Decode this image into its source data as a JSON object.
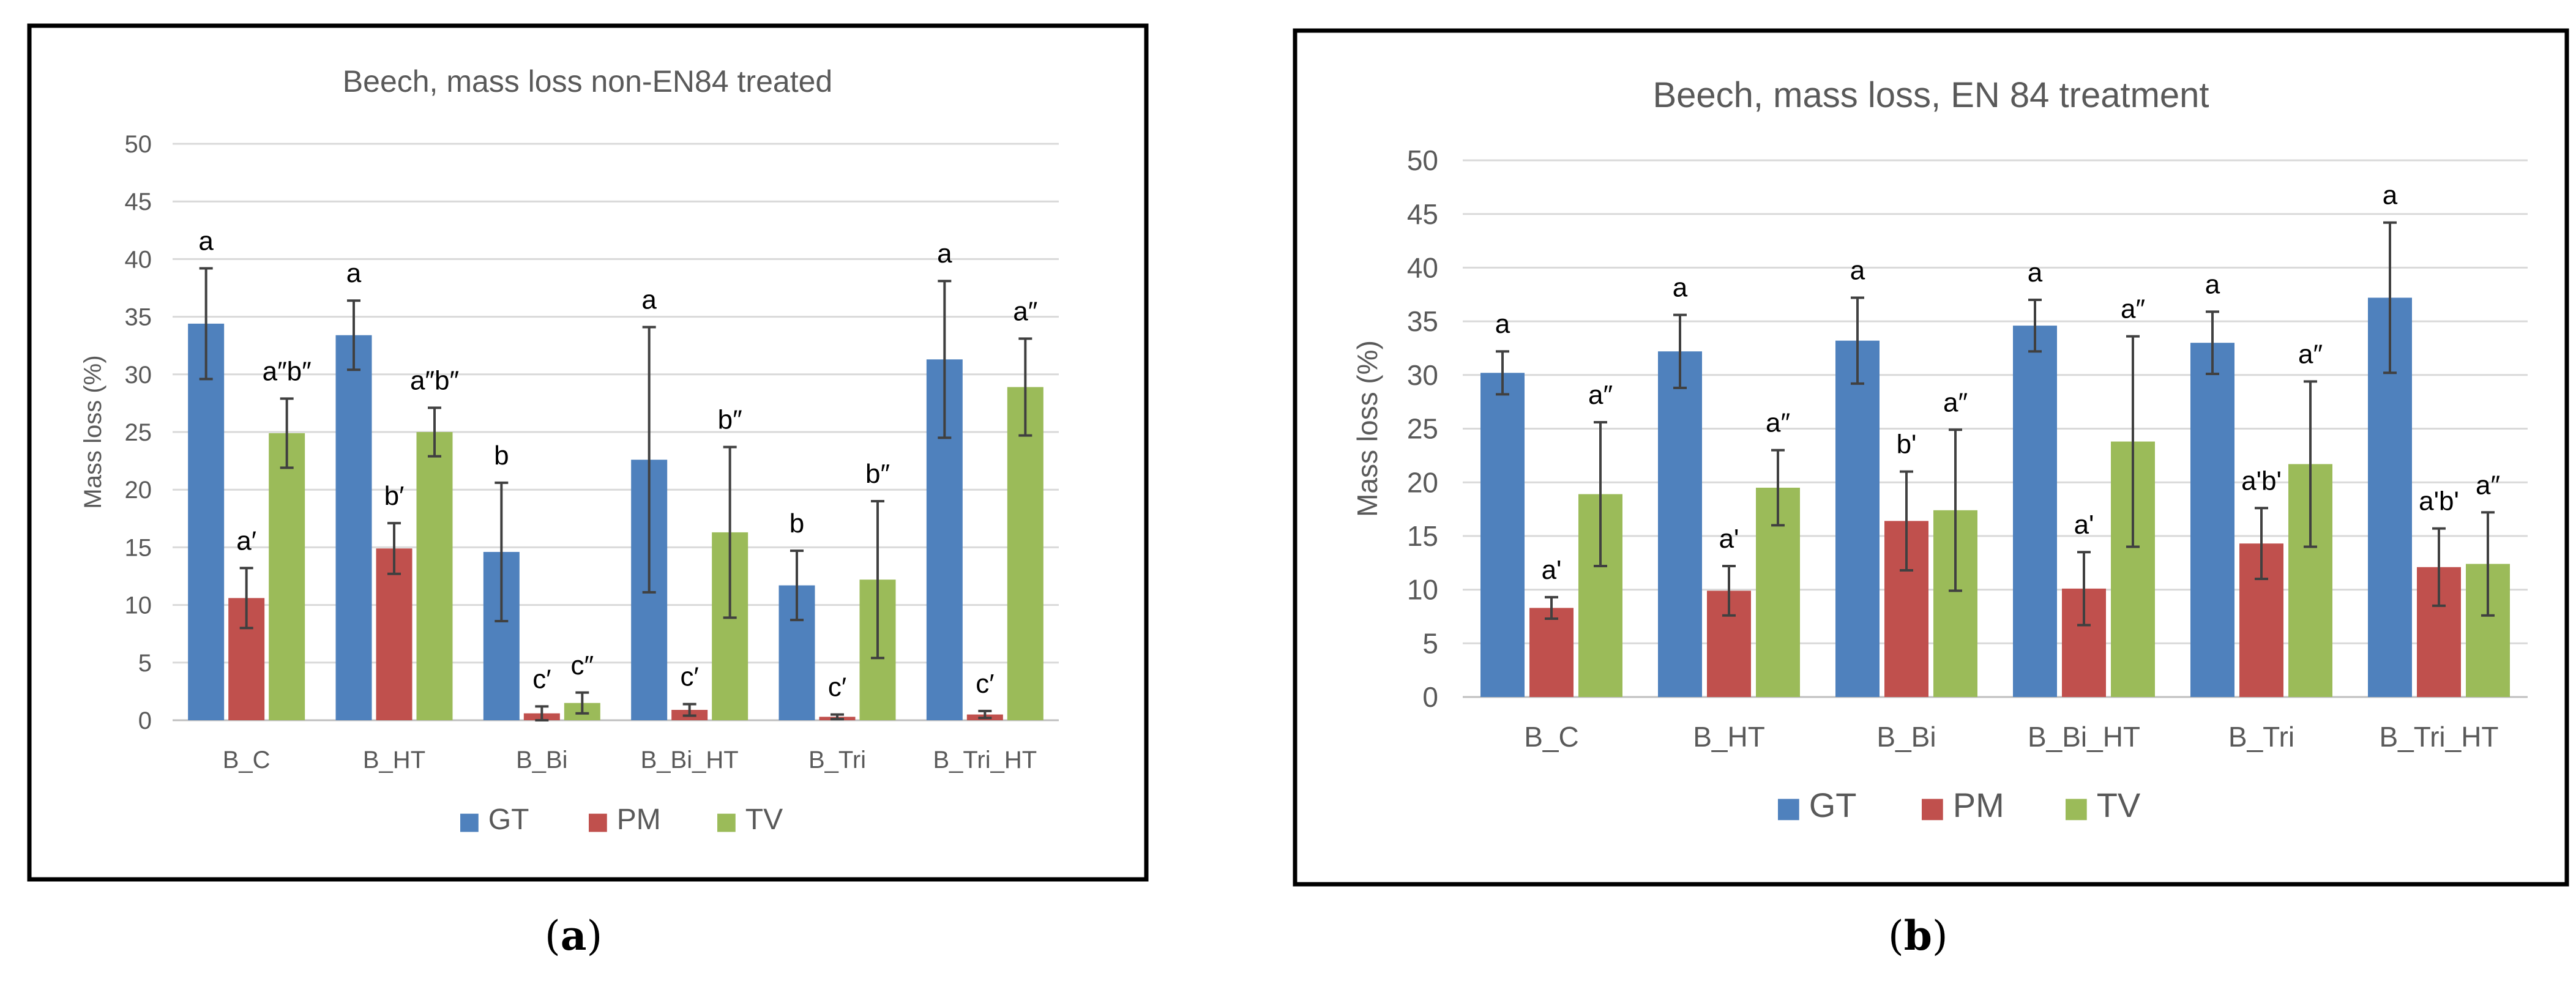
{
  "colors": {
    "GT": "#4f81bd",
    "PM": "#c0504d",
    "TV": "#9bbb59",
    "grid": "#d9d9d9",
    "text": "#595959",
    "err": "#404040"
  },
  "panel_labels": [
    {
      "open": "(",
      "letter": "a",
      "close": ")"
    },
    {
      "open": "(",
      "letter": "b",
      "close": ")"
    }
  ],
  "chart_data": [
    {
      "type": "bar",
      "title": "Beech, mass loss non-EN84 treated",
      "xlabel": "",
      "ylabel": "Mass loss (%)",
      "ylim": [
        0,
        50
      ],
      "yticks": [
        0,
        5,
        10,
        15,
        20,
        25,
        30,
        35,
        40,
        45,
        50
      ],
      "grid": true,
      "legend": "bottom",
      "categories": [
        "B_C",
        "B_HT",
        "B_Bi",
        "B_Bi_HT",
        "B_Tri",
        "B_Tri_HT"
      ],
      "series": [
        {
          "name": "GT",
          "values": [
            34.4,
            33.4,
            14.6,
            22.6,
            11.7,
            31.3
          ],
          "errors": [
            4.8,
            3.0,
            6.0,
            11.5,
            3.0,
            6.8
          ],
          "labels": [
            "a",
            "a",
            "b",
            "a",
            "b",
            "a"
          ]
        },
        {
          "name": "PM",
          "values": [
            10.6,
            14.9,
            0.6,
            0.9,
            0.3,
            0.5
          ],
          "errors": [
            2.6,
            2.2,
            0.6,
            0.5,
            0.2,
            0.3
          ],
          "labels": [
            "a′",
            "b′",
            "c′",
            "c′",
            "c′",
            "c′"
          ]
        },
        {
          "name": "TV",
          "values": [
            24.9,
            25.0,
            1.5,
            16.3,
            12.2,
            28.9
          ],
          "errors": [
            3.0,
            2.1,
            0.9,
            7.4,
            6.8,
            4.2
          ],
          "labels": [
            "a″b″",
            "a″b″",
            "c″",
            "b″",
            "b″",
            "a″"
          ]
        }
      ]
    },
    {
      "type": "bar",
      "title": "Beech, mass loss, EN 84 treatment",
      "xlabel": "",
      "ylabel": "Mass loss (%)",
      "ylim": [
        0,
        50
      ],
      "yticks": [
        0,
        5,
        10,
        15,
        20,
        25,
        30,
        35,
        40,
        45,
        50
      ],
      "grid": true,
      "legend": "bottom",
      "categories": [
        "B_C",
        "B_HT",
        "B_Bi",
        "B_Bi_HT",
        "B_Tri",
        "B_Tri_HT"
      ],
      "series": [
        {
          "name": "GT",
          "values": [
            30.2,
            32.2,
            33.2,
            34.6,
            33.0,
            37.2
          ],
          "errors": [
            2.0,
            3.4,
            4.0,
            2.4,
            2.9,
            7.0
          ],
          "labels": [
            "a",
            "a",
            "a",
            "a",
            "a",
            "a"
          ]
        },
        {
          "name": "PM",
          "values": [
            8.3,
            9.9,
            16.4,
            10.1,
            14.3,
            12.1
          ],
          "errors": [
            1.0,
            2.3,
            4.6,
            3.4,
            3.3,
            3.6
          ],
          "labels": [
            "a'",
            "a'",
            "b'",
            "a'",
            "a'b'",
            "a'b'"
          ]
        },
        {
          "name": "TV",
          "values": [
            18.9,
            19.5,
            17.4,
            23.8,
            21.7,
            12.4
          ],
          "errors": [
            6.7,
            3.5,
            7.5,
            9.8,
            7.7,
            4.8
          ],
          "labels": [
            "a″",
            "a″",
            "a″",
            "a″",
            "a″",
            "a″"
          ]
        }
      ]
    }
  ]
}
